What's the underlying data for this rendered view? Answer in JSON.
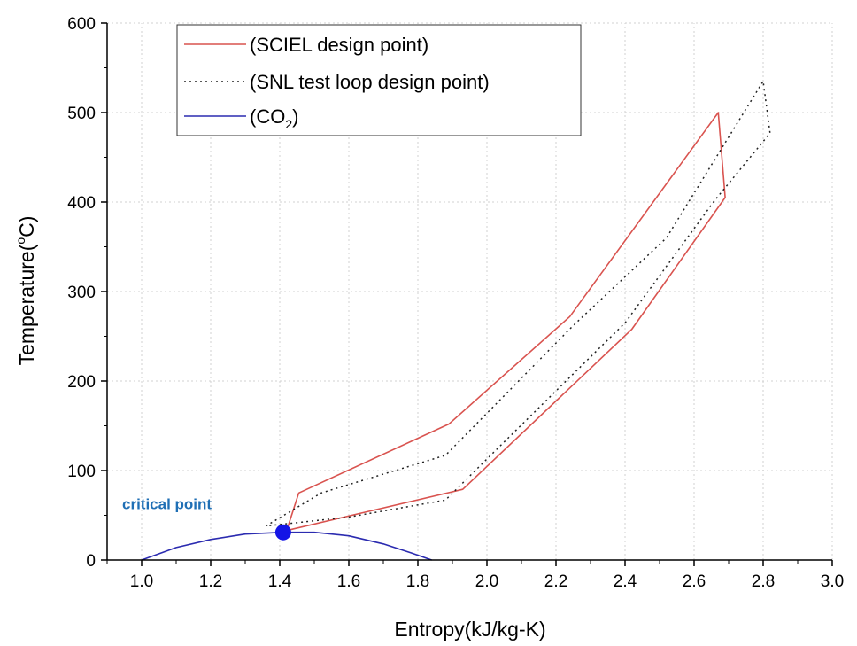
{
  "chart_data": {
    "type": "line",
    "title": "",
    "xlabel": "Entropy(kJ/kg-K)",
    "ylabel": "Temperature(°C)",
    "ylabel_main": "Temperature(",
    "ylabel_deg": "o",
    "ylabel_unit": "C)",
    "xlim": [
      0.9,
      3.0
    ],
    "ylim": [
      0,
      600
    ],
    "xticks": [
      1.0,
      1.2,
      1.4,
      1.6,
      1.8,
      2.0,
      2.2,
      2.4,
      2.6,
      2.8,
      3.0
    ],
    "xtick_labels": [
      "1.0",
      "1.2",
      "1.4",
      "1.6",
      "1.8",
      "2.0",
      "2.2",
      "2.4",
      "2.6",
      "2.8",
      "3.0"
    ],
    "yticks": [
      0,
      100,
      200,
      300,
      400,
      500,
      600
    ],
    "ytick_labels": [
      "0",
      "100",
      "200",
      "300",
      "400",
      "500",
      "600"
    ],
    "grid": true,
    "legend_position": "top-left",
    "series": [
      {
        "name": "(SCIEL design point)",
        "style": "solid",
        "color": "#d9534f",
        "x": [
          1.42,
          1.455,
          1.89,
          2.24,
          2.67,
          2.69,
          2.42,
          1.93,
          1.42
        ],
        "y": [
          33,
          75,
          152,
          272,
          500,
          405,
          258,
          79,
          33
        ]
      },
      {
        "name": "(SNL test loop design point)",
        "style": "dotted",
        "color": "#222222",
        "x": [
          1.36,
          1.52,
          1.88,
          2.25,
          2.52,
          2.8,
          2.82,
          2.66,
          2.4,
          2.05,
          1.88,
          1.6,
          1.36
        ],
        "y": [
          38,
          75,
          117,
          262,
          360,
          535,
          477,
          402,
          265,
          132,
          67,
          48,
          38
        ]
      },
      {
        "name_prefix": "(CO",
        "name_sub": "2",
        "name_suffix": ")",
        "style": "solid",
        "color": "#2b2bb0",
        "x": [
          1.0,
          1.1,
          1.2,
          1.3,
          1.41,
          1.5,
          1.6,
          1.7,
          1.78,
          1.84
        ],
        "y": [
          0,
          14,
          23,
          29,
          31,
          31,
          27,
          18,
          8,
          0
        ]
      }
    ],
    "critical_point": {
      "x": 1.41,
      "y": 31,
      "color": "#1515e6"
    },
    "annotation": {
      "text": "critical point",
      "x": 1.0,
      "y": 57,
      "color": "#1f6fb5"
    }
  }
}
